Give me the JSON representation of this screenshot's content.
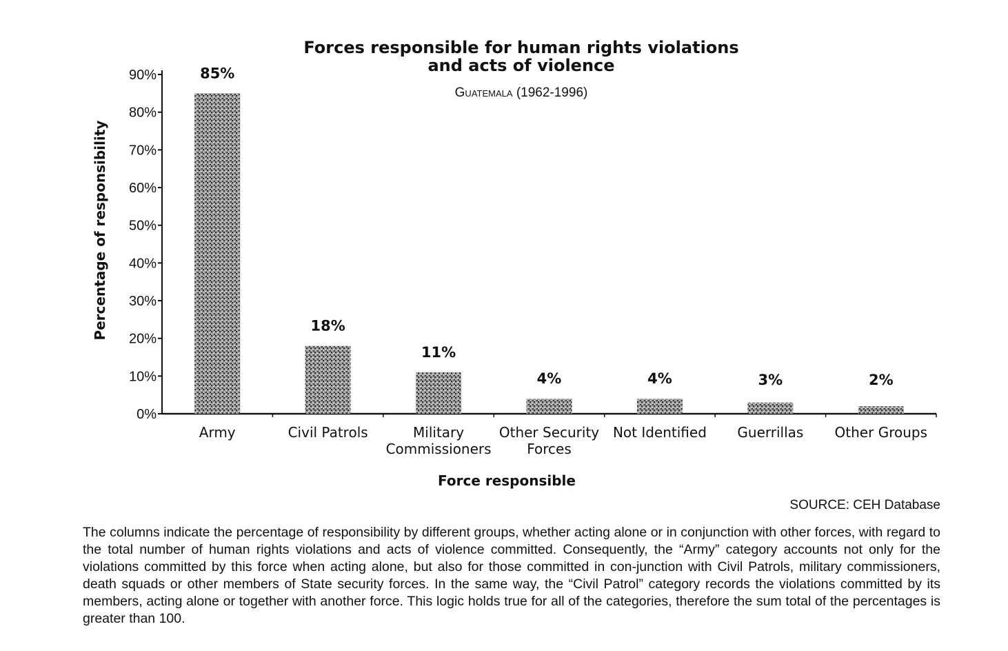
{
  "chart_data": {
    "type": "bar",
    "title_lines": [
      "Forces responsible for human rights violations",
      "and acts of violence"
    ],
    "subtitle": "Guatemala (1962-1996)",
    "xlabel": "Force responsible",
    "ylabel": "Percentage of responsibility",
    "categories": [
      [
        "Army"
      ],
      [
        "Civil Patrols"
      ],
      [
        "Military",
        "Commissioners"
      ],
      [
        "Other Security",
        "Forces"
      ],
      [
        "Not Identified"
      ],
      [
        "Guerrillas"
      ],
      [
        "Other Groups"
      ]
    ],
    "values": [
      85,
      18,
      11,
      4,
      4,
      3,
      2
    ],
    "value_labels": [
      "85%",
      "18%",
      "11%",
      "4%",
      "4%",
      "3%",
      "2%"
    ],
    "y_ticks": [
      "0%",
      "10%",
      "20%",
      "30%",
      "40%",
      "50%",
      "60%",
      "70%",
      "80%",
      "90%"
    ],
    "ylim": [
      0,
      90
    ],
    "grid": false,
    "legend": "none",
    "bar_fill": "stippled dark grey"
  },
  "source": "SOURCE: CEH Database",
  "caption": "The columns indicate the percentage of responsibility by different groups, whether acting alone or in conjunction with other forces, with regard to the total number of human rights violations and acts of violence committed. Consequently, the “Army” category accounts not only for the violations committed by this force when acting alone, but also for those committed in con-junction with Civil Patrols, military commissioners, death squads or other members of State security forces. In the same way, the “Civil Patrol” category records the violations committed by its members, acting alone or together with another force. This logic holds true for all of the categories, therefore the sum total of the percentages is greater than 100."
}
